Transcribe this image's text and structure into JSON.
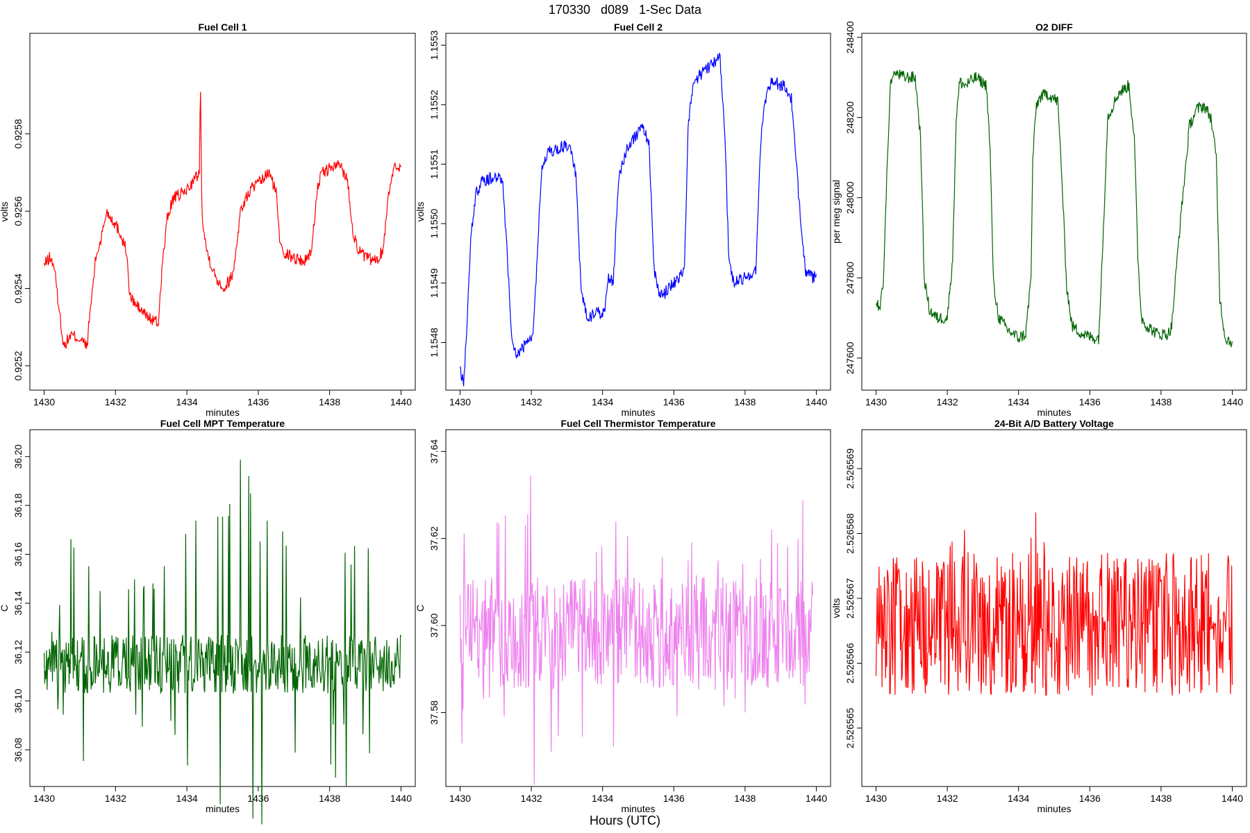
{
  "figure": {
    "title": "170330   d089   1-Sec Data",
    "xlabel": "Hours (UTC)"
  },
  "chart_data": [
    {
      "type": "line",
      "title": "Fuel Cell 1",
      "xlabel": "minutes",
      "ylabel": "volts",
      "color": "#ff0000",
      "xlim": [
        1429.6,
        1440.4
      ],
      "ylim": [
        92513.7,
        92606.0
      ],
      "y_scale_factor": 1e-05,
      "y_ticks": [
        92520,
        92540,
        92560,
        92580
      ],
      "y_tick_labels": [
        "0.9252",
        "0.9254",
        "0.9256",
        "0.9258"
      ],
      "x_ticks": [
        1430,
        1432,
        1434,
        1436,
        1438,
        1440
      ],
      "x_tick_labels": [
        "1430",
        "1432",
        "1434",
        "1436",
        "1438",
        "1440"
      ],
      "series": [
        {
          "x": [
            1430.0,
            1430.15,
            1430.28,
            1430.4,
            1430.55,
            1430.75,
            1431.0,
            1431.2,
            1431.3,
            1431.45,
            1431.6,
            1431.75,
            1431.9,
            1432.1,
            1432.3,
            1432.4,
            1432.55,
            1432.75,
            1433.0,
            1433.2,
            1433.3,
            1433.45,
            1433.6,
            1433.75,
            1433.95,
            1434.2,
            1434.35,
            1434.38,
            1434.42,
            1434.55,
            1434.8,
            1435.05,
            1435.3,
            1435.5,
            1435.65,
            1435.8,
            1436.0,
            1436.3,
            1436.5,
            1436.6,
            1436.75,
            1437.0,
            1437.3,
            1437.5,
            1437.65,
            1437.8,
            1438.0,
            1438.3,
            1438.5,
            1438.65,
            1438.8,
            1439.0,
            1439.3,
            1439.5,
            1439.65,
            1439.8,
            1440.0
          ],
          "y": [
            92546,
            92548,
            92546,
            92536,
            92525,
            92528,
            92527,
            92525,
            92535,
            92548,
            92553,
            92560,
            92558,
            92555,
            92550,
            92538,
            92536,
            92534,
            92532,
            92531,
            92545,
            92558,
            92563,
            92564,
            92565,
            92568,
            92570,
            92595,
            92560,
            92550,
            92543,
            92540,
            92544,
            92560,
            92563,
            92566,
            92567,
            92570,
            92565,
            92553,
            92549,
            92548,
            92547,
            92550,
            92566,
            92570,
            92571,
            92572,
            92568,
            92555,
            92550,
            92548,
            92547,
            92550,
            92565,
            92571,
            92572
          ]
        }
      ]
    },
    {
      "type": "line",
      "title": "Fuel Cell 2",
      "xlabel": "minutes",
      "ylabel": "volts",
      "color": "#0000ff",
      "xlim": [
        1429.6,
        1440.4
      ],
      "ylim": [
        11547.2,
        11553.2
      ],
      "y_scale_factor": 0.0001,
      "y_ticks": [
        11548,
        11549,
        11550,
        11551,
        11552,
        11553
      ],
      "y_tick_labels": [
        "1.1548",
        "1.1549",
        "1.1550",
        "1.1551",
        "1.1552",
        "1.1553"
      ],
      "x_ticks": [
        1430,
        1432,
        1434,
        1436,
        1438,
        1440
      ],
      "x_tick_labels": [
        "1430",
        "1432",
        "1434",
        "1436",
        "1438",
        "1440"
      ],
      "series": [
        {
          "x": [
            1430.0,
            1430.1,
            1430.2,
            1430.3,
            1430.45,
            1430.6,
            1431.0,
            1431.2,
            1431.35,
            1431.45,
            1431.6,
            1431.9,
            1432.05,
            1432.15,
            1432.3,
            1432.5,
            1432.9,
            1433.1,
            1433.25,
            1433.4,
            1433.6,
            1433.8,
            1434.05,
            1434.15,
            1434.3,
            1434.45,
            1434.7,
            1435.1,
            1435.3,
            1435.45,
            1435.55,
            1435.7,
            1436.0,
            1436.3,
            1436.4,
            1436.55,
            1436.75,
            1437.1,
            1437.3,
            1437.45,
            1437.55,
            1437.7,
            1438.0,
            1438.3,
            1438.45,
            1438.6,
            1438.75,
            1439.1,
            1439.3,
            1439.5,
            1439.7,
            1439.85,
            1440.0
          ],
          "y": [
            11547.5,
            11547.3,
            11548.4,
            11549.8,
            11550.5,
            11550.7,
            11550.8,
            11550.7,
            11549.2,
            11548.0,
            11547.8,
            11548.0,
            11548.1,
            11549.3,
            11551.0,
            11551.2,
            11551.3,
            11551.3,
            11550.8,
            11548.8,
            11548.4,
            11548.5,
            11548.5,
            11549.1,
            11549.0,
            11550.8,
            11551.3,
            11551.6,
            11551.4,
            11549.2,
            11548.9,
            11548.8,
            11549.0,
            11549.2,
            11551.6,
            11552.4,
            11552.5,
            11552.7,
            11552.8,
            11551.2,
            11549.3,
            11549.0,
            11549.1,
            11549.2,
            11551.5,
            11552.2,
            11552.4,
            11552.3,
            11552.1,
            11550.5,
            11549.2,
            11549.1,
            11549.1
          ]
        }
      ]
    },
    {
      "type": "line",
      "title": "O2 DIFF",
      "xlabel": "minutes",
      "ylabel": "per meg signal",
      "color": "#006400",
      "xlim": [
        1429.6,
        1440.4
      ],
      "ylim": [
        247520,
        248410
      ],
      "y_ticks": [
        247600,
        247800,
        248000,
        248200,
        248400
      ],
      "y_tick_labels": [
        "247600",
        "247800",
        "248000",
        "248200",
        "248400"
      ],
      "x_ticks": [
        1430,
        1432,
        1434,
        1436,
        1438,
        1440
      ],
      "x_tick_labels": [
        "1430",
        "1432",
        "1434",
        "1436",
        "1438",
        "1440"
      ],
      "series": [
        {
          "x": [
            1430.0,
            1430.1,
            1430.2,
            1430.3,
            1430.4,
            1430.55,
            1430.8,
            1431.1,
            1431.25,
            1431.35,
            1431.5,
            1431.7,
            1432.0,
            1432.15,
            1432.25,
            1432.35,
            1432.5,
            1432.8,
            1433.1,
            1433.2,
            1433.3,
            1433.45,
            1433.7,
            1434.0,
            1434.2,
            1434.35,
            1434.4,
            1434.5,
            1434.6,
            1434.8,
            1435.1,
            1435.2,
            1435.35,
            1435.5,
            1435.8,
            1436.1,
            1436.25,
            1436.35,
            1436.5,
            1436.8,
            1437.1,
            1437.25,
            1437.35,
            1437.45,
            1437.6,
            1437.9,
            1438.2,
            1438.3,
            1438.5,
            1438.8,
            1439.0,
            1439.2,
            1439.4,
            1439.55,
            1439.65,
            1439.8,
            1440.0
          ],
          "y": [
            247740,
            247720,
            247780,
            248050,
            248280,
            248310,
            248300,
            248300,
            248150,
            247800,
            247720,
            247700,
            247700,
            247850,
            248200,
            248290,
            248280,
            248300,
            248280,
            248120,
            247780,
            247700,
            247670,
            247650,
            247660,
            247800,
            248100,
            248230,
            248250,
            248260,
            248240,
            248080,
            247780,
            247680,
            247660,
            247650,
            247650,
            247850,
            248200,
            248260,
            248280,
            248150,
            247850,
            247700,
            247680,
            247660,
            247660,
            247680,
            247900,
            248180,
            248220,
            248230,
            248200,
            248100,
            247750,
            247650,
            247640
          ]
        }
      ]
    },
    {
      "type": "line",
      "title": "Fuel Cell MPT Temperature",
      "xlabel": "minutes",
      "ylabel": "C",
      "color": "#006400",
      "noise_series": true,
      "xlim": [
        1429.6,
        1440.4
      ],
      "ylim": [
        36.065,
        36.211
      ],
      "y_ticks": [
        36.08,
        36.1,
        36.12,
        36.14,
        36.16,
        36.18,
        36.2
      ],
      "y_tick_labels": [
        "36.08",
        "36.10",
        "36.12",
        "36.14",
        "36.16",
        "36.18",
        "36.20"
      ],
      "x_ticks": [
        1430,
        1432,
        1434,
        1436,
        1438,
        1440
      ],
      "x_tick_labels": [
        "1430",
        "1432",
        "1434",
        "1436",
        "1438",
        "1440"
      ],
      "baseline": 36.115,
      "noise_amplitude": 0.012,
      "series": [
        {
          "name": "",
          "x": [
            1430.0,
            1430.3,
            1430.8,
            1430.9,
            1431.2,
            1433.0,
            1434.0,
            1435.0,
            1435.8,
            1436.6,
            1437.5,
            1438.0,
            1438.6,
            1439.3,
            1440.0
          ],
          "y": [
            36.12,
            36.14,
            36.188,
            36.178,
            36.16,
            36.15,
            36.177,
            36.203,
            36.203,
            36.185,
            36.13,
            36.17,
            36.178,
            36.163,
            36.11
          ]
        }
      ]
    },
    {
      "type": "line",
      "title": "Fuel Cell Thermistor Temperature",
      "xlabel": "minutes",
      "ylabel": "C",
      "color": "#ee82ee",
      "noise_series": true,
      "xlim": [
        1429.6,
        1440.4
      ],
      "ylim": [
        37.563,
        37.645
      ],
      "y_ticks": [
        37.58,
        37.6,
        37.62,
        37.64
      ],
      "y_tick_labels": [
        "37.58",
        "37.60",
        "37.62",
        "37.64"
      ],
      "x_ticks": [
        1430,
        1432,
        1434,
        1436,
        1438,
        1440
      ],
      "x_tick_labels": [
        "1430",
        "1432",
        "1434",
        "1436",
        "1438",
        "1440"
      ],
      "baseline": 37.598,
      "noise_amplitude": 0.013,
      "series": [
        {
          "name": "",
          "x": [
            1430.0,
            1430.5,
            1431.2,
            1432.5,
            1433.5,
            1434.8,
            1436.0,
            1437.0,
            1438.1,
            1439.9
          ],
          "y": [
            37.63,
            37.61,
            37.636,
            37.641,
            37.625,
            37.628,
            37.622,
            37.618,
            37.62,
            37.631
          ]
        }
      ]
    },
    {
      "type": "line",
      "title": "24-Bit A/D Battery Voltage",
      "xlabel": "minutes",
      "ylabel": "volts",
      "color": "#ff0000",
      "noise_series": true,
      "xlim": [
        1429.6,
        1440.4
      ],
      "ylim": [
        2.5265641,
        2.5265696
      ],
      "y_ticks": [
        2.526565,
        2.526566,
        2.526567,
        2.526568,
        2.526569
      ],
      "y_tick_labels": [
        "2.526565",
        "2.526566",
        "2.526567",
        "2.526568",
        "2.526569"
      ],
      "x_ticks": [
        1430,
        1432,
        1434,
        1436,
        1438,
        1440
      ],
      "x_tick_labels": [
        "1430",
        "1432",
        "1434",
        "1436",
        "1438",
        "1440"
      ],
      "baseline": 2.5265666,
      "noise_amplitude": 1.1e-06,
      "series": [
        {
          "name": "",
          "x": [
            1430.0,
            1430.3,
            1430.6,
            1431.0,
            1432.0,
            1432.8,
            1433.5,
            1434.2,
            1434.5,
            1435.0,
            1436.0,
            1437.0,
            1438.0,
            1439.0,
            1439.8,
            1440.0
          ],
          "y": [
            2.5265648,
            2.5265655,
            2.526566,
            2.5265668,
            2.526568,
            2.5265683,
            2.526568,
            2.5265675,
            2.5265685,
            2.5265672,
            2.5265668,
            2.5265665,
            2.5265666,
            2.5265662,
            2.5265668,
            2.5265666
          ]
        }
      ]
    }
  ]
}
